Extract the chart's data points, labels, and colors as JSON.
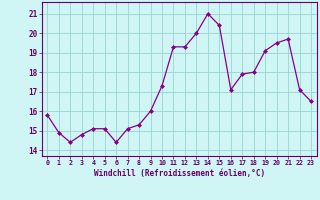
{
  "x": [
    0,
    1,
    2,
    3,
    4,
    5,
    6,
    7,
    8,
    9,
    10,
    11,
    12,
    13,
    14,
    15,
    16,
    17,
    18,
    19,
    20,
    21,
    22,
    23
  ],
  "y": [
    15.8,
    14.9,
    14.4,
    14.8,
    15.1,
    15.1,
    14.4,
    15.1,
    15.3,
    16.0,
    17.3,
    19.3,
    19.3,
    20.0,
    21.0,
    20.4,
    17.1,
    17.9,
    18.0,
    19.1,
    19.5,
    19.7,
    17.1,
    16.5
  ],
  "line_color": "#880088",
  "marker_color": "#880088",
  "bg_color": "#d0f5f5",
  "grid_color": "#a0d8d8",
  "xlabel": "Windchill (Refroidissement éolien,°C)",
  "ylabel_ticks": [
    14,
    15,
    16,
    17,
    18,
    19,
    20,
    21
  ],
  "xtick_labels": [
    "0",
    "1",
    "2",
    "3",
    "4",
    "5",
    "6",
    "7",
    "8",
    "9",
    "10",
    "11",
    "12",
    "13",
    "14",
    "15",
    "16",
    "17",
    "18",
    "19",
    "20",
    "21",
    "22",
    "23"
  ],
  "ylim": [
    13.7,
    21.6
  ],
  "xlim": [
    -0.5,
    23.5
  ]
}
